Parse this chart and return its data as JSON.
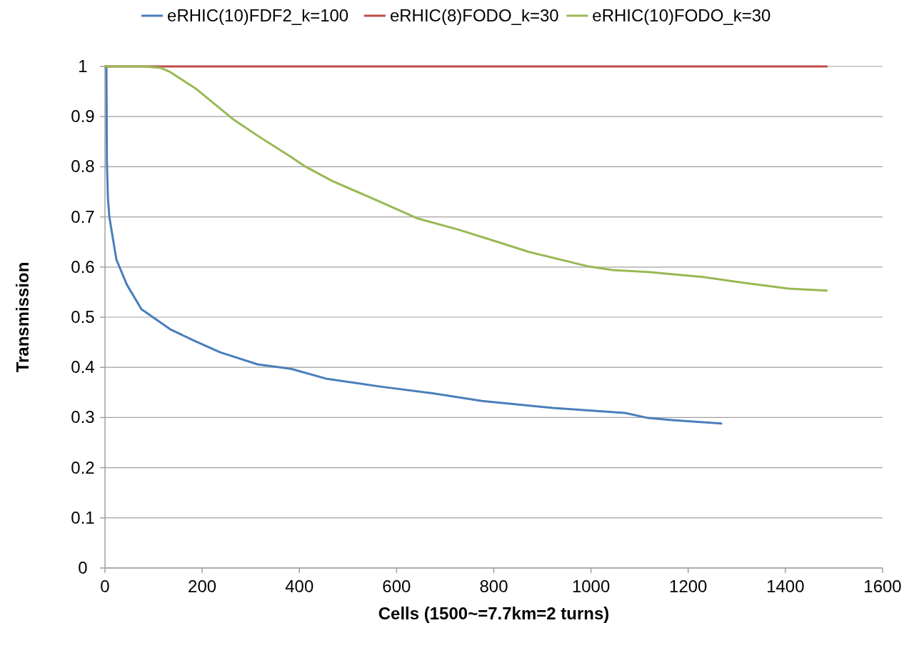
{
  "chart_data": {
    "type": "line",
    "xlabel": "Cells (1500~=7.7km=2 turns)",
    "ylabel": "Transmission",
    "xlim": [
      0,
      1600
    ],
    "xticks": [
      0,
      200,
      400,
      600,
      800,
      1000,
      1200,
      1400,
      1600
    ],
    "ylim": [
      0,
      1
    ],
    "yticks": [
      0,
      0.1,
      0.2,
      0.3,
      0.4,
      0.5,
      0.6,
      0.7,
      0.8,
      0.9,
      1
    ],
    "grid": "y",
    "legend": "top",
    "marker": "none",
    "line_style": "solid",
    "series": [
      {
        "name": "eRHIC(10)FDF2_k=100",
        "color": "#4a7ebb",
        "x": [
          3,
          4,
          6,
          9,
          15,
          23.5,
          45,
          75,
          134,
          182,
          237,
          314,
          383,
          457,
          564,
          677,
          776,
          922,
          1070,
          1118,
          1167,
          1268
        ],
        "values": [
          1,
          0.81,
          0.74,
          0.7,
          0.665,
          0.615,
          0.565,
          0.516,
          0.476,
          0.454,
          0.43,
          0.406,
          0.397,
          0.377,
          0.362,
          0.348,
          0.333,
          0.319,
          0.309,
          0.299,
          0.295,
          0.288
        ]
      },
      {
        "name": "eRHIC(8)FODO_k=30",
        "color": "#be4b48",
        "x": [
          0,
          1485
        ],
        "values": [
          1,
          1
        ]
      },
      {
        "name": "eRHIC(10)FODO_k=30",
        "color": "#98b954",
        "x": [
          0,
          80,
          115,
          134,
          188,
          266,
          314,
          379,
          413,
          467,
          545,
          643,
          726,
          805,
          873,
          996,
          1045,
          1118,
          1231,
          1319,
          1407,
          1485
        ],
        "values": [
          1,
          1,
          0.997,
          0.989,
          0.955,
          0.893,
          0.862,
          0.822,
          0.8,
          0.772,
          0.739,
          0.697,
          0.675,
          0.651,
          0.63,
          0.601,
          0.594,
          0.59,
          0.58,
          0.568,
          0.557,
          0.553
        ]
      }
    ]
  }
}
